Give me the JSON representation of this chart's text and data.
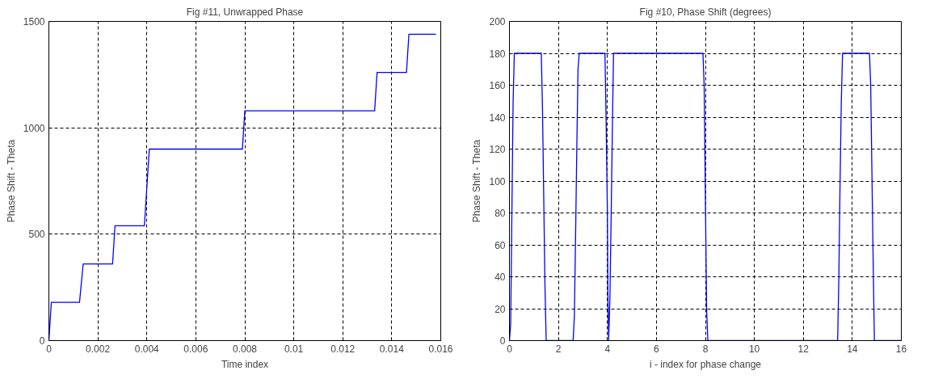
{
  "chart_data": [
    {
      "type": "line",
      "title": "Fig #11, Unwrapped Phase",
      "xlabel": "Time index",
      "ylabel": "Phase Shift - Theta",
      "xlim": [
        0,
        0.016
      ],
      "ylim": [
        0,
        1500
      ],
      "xticks": [
        0,
        0.002,
        0.004,
        0.006,
        0.008,
        0.01,
        0.012,
        0.014,
        0.016
      ],
      "yticks": [
        0,
        500,
        1000,
        1500
      ],
      "grid": true,
      "line_style": "solid",
      "x": [
        0,
        0.0001,
        0.00125,
        0.0014,
        0.0026,
        0.0027,
        0.0039,
        0.0041,
        0.0079,
        0.008,
        0.0133,
        0.0134,
        0.0146,
        0.0147,
        0.0158
      ],
      "series": [
        {
          "color": "#0000ff",
          "values": [
            0,
            180,
            180,
            360,
            360,
            540,
            540,
            900,
            900,
            1080,
            1080,
            1260,
            1260,
            1440,
            1440
          ]
        }
      ]
    },
    {
      "type": "line",
      "title": "Fig #10, Phase Shift (degrees)",
      "xlabel": "i - index for phase change",
      "ylabel": "Phase Shift - Theta",
      "xlim": [
        0,
        16
      ],
      "ylim": [
        0,
        200
      ],
      "xticks": [
        0,
        2,
        4,
        6,
        8,
        10,
        12,
        14,
        16
      ],
      "yticks": [
        0,
        20,
        40,
        60,
        80,
        100,
        120,
        140,
        160,
        180,
        200
      ],
      "grid": true,
      "line_style": "solid",
      "x": [
        0,
        0.05,
        0.1,
        0.15,
        0.2,
        1.3,
        1.35,
        1.4,
        1.45,
        1.5,
        2.6,
        2.65,
        2.7,
        2.75,
        2.8,
        2.85,
        3.9,
        3.95,
        4.0,
        4.02,
        4.05,
        4.1,
        4.15,
        4.2,
        4.25,
        7.9,
        7.95,
        8.0,
        8.05,
        8.1,
        13.4,
        13.45,
        13.5,
        13.55,
        13.6,
        14.7,
        14.75,
        14.8,
        14.85,
        14.9,
        16
      ],
      "series": [
        {
          "color": "#0000ff",
          "values": [
            0,
            10,
            80,
            150,
            180,
            180,
            145,
            90,
            35,
            0,
            0,
            15,
            65,
            120,
            170,
            180,
            180,
            135,
            80,
            30,
            0,
            25,
            75,
            130,
            180,
            180,
            160,
            90,
            20,
            0,
            0,
            40,
            100,
            150,
            180,
            180,
            160,
            105,
            50,
            0,
            0
          ]
        }
      ]
    }
  ]
}
